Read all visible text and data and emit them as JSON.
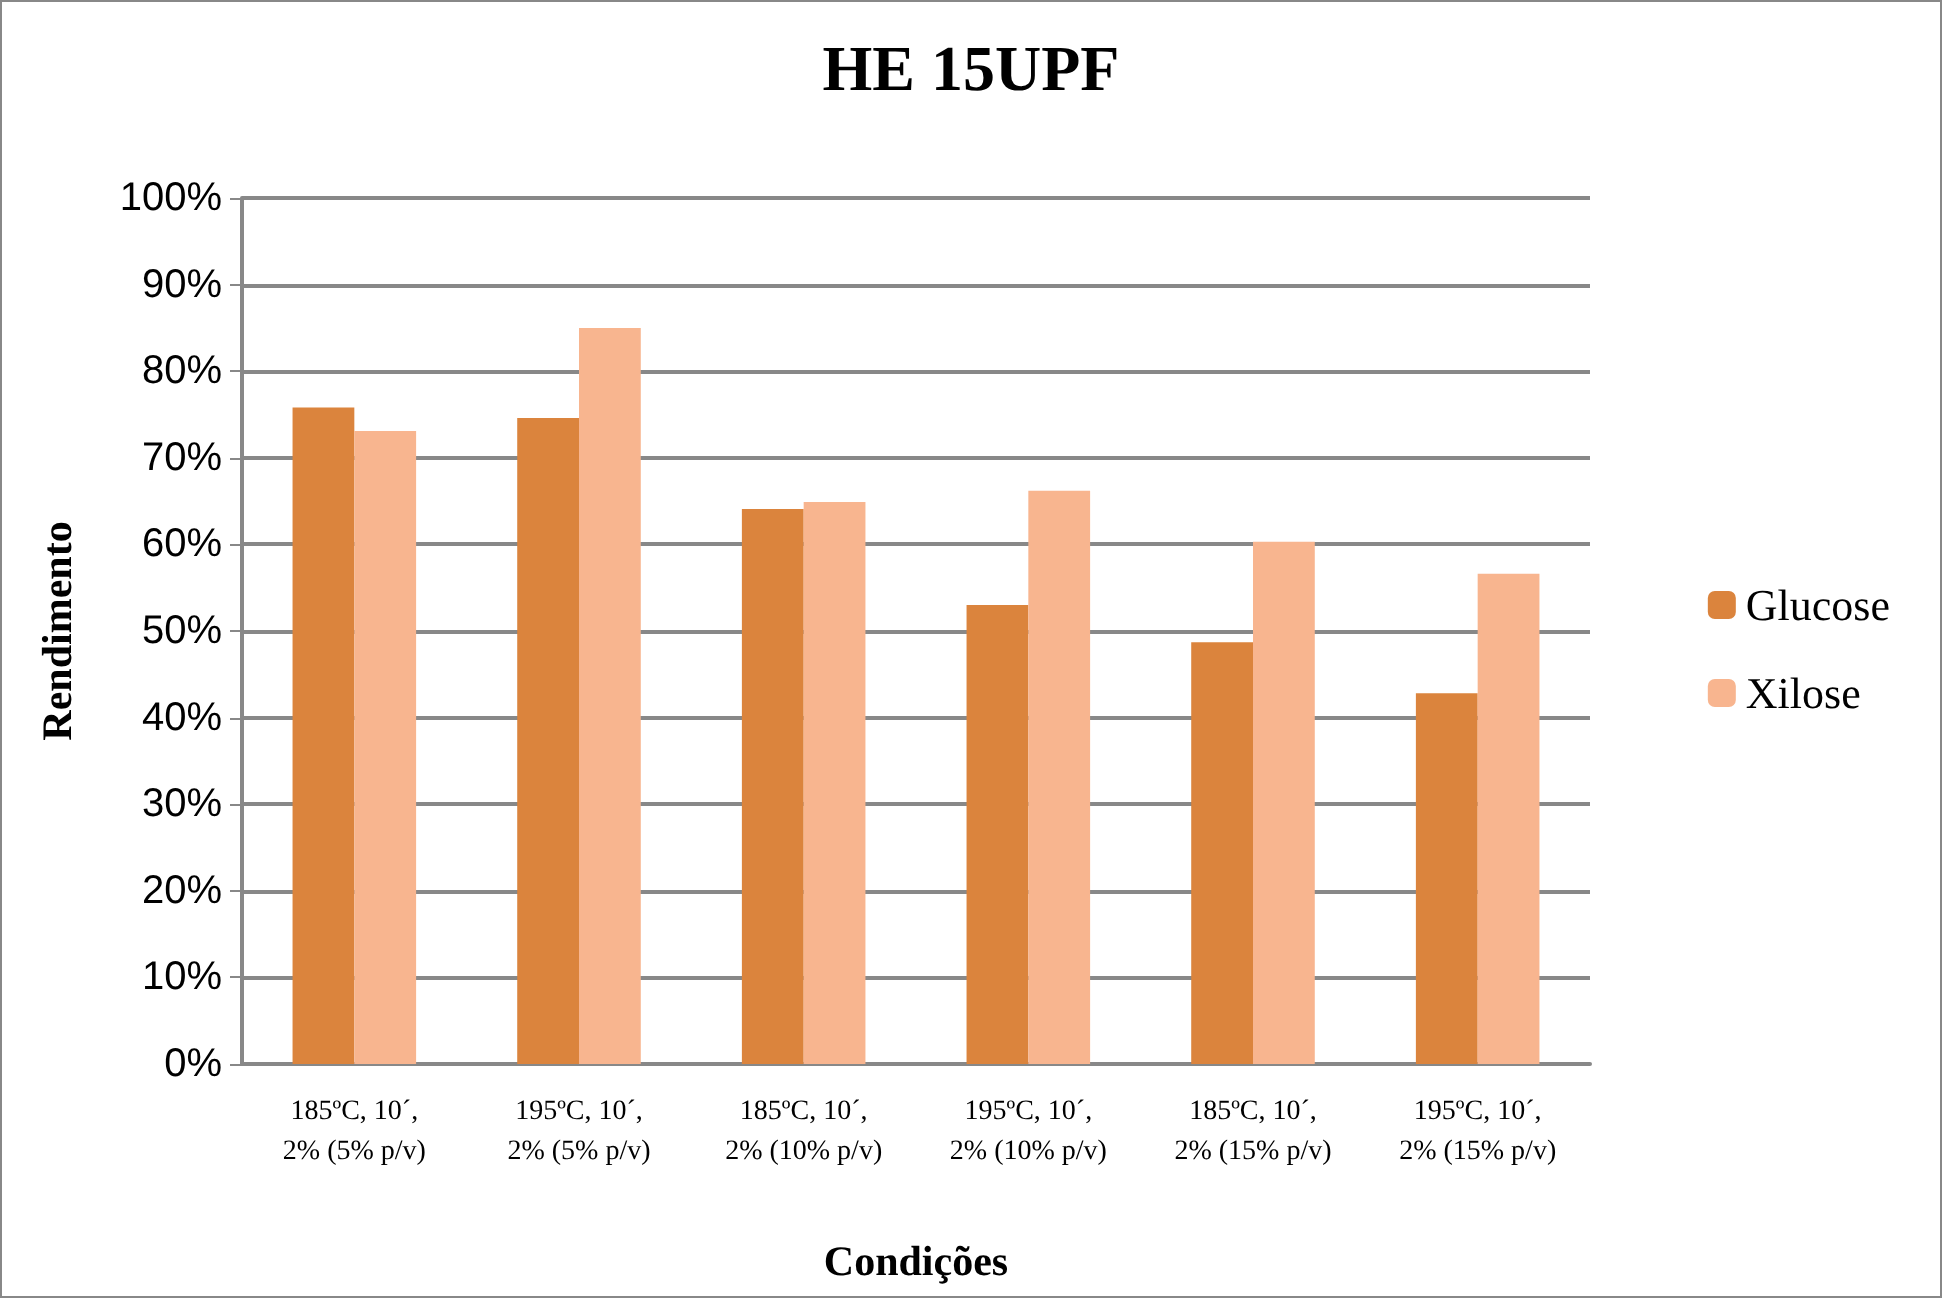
{
  "chart_data": {
    "type": "bar",
    "title": "HE 15UPF",
    "xlabel": "Condições",
    "ylabel": "Rendimento",
    "categories": [
      "185ºC, 10´,\n2% (5% p/v)",
      "195ºC, 10´,\n2% (5% p/v)",
      "185ºC, 10´,\n2% (10% p/v)",
      "195ºC, 10´,\n2% (10% p/v)",
      "185ºC, 10´,\n2% (15% p/v)",
      "195ºC, 10´,\n2% (15% p/v)"
    ],
    "series": [
      {
        "name": "Glucose",
        "color": "#db843d",
        "values": [
          0.758,
          0.746,
          0.641,
          0.53,
          0.487,
          0.428
        ]
      },
      {
        "name": "Xilose",
        "color": "#f8b58f",
        "values": [
          0.731,
          0.85,
          0.649,
          0.662,
          0.603,
          0.566
        ]
      }
    ],
    "ylim": [
      0,
      1
    ],
    "yticks": [
      {
        "value": 0,
        "label": "0%"
      },
      {
        "value": 0.1,
        "label": "10%"
      },
      {
        "value": 0.2,
        "label": "20%"
      },
      {
        "value": 0.3,
        "label": "30%"
      },
      {
        "value": 0.4,
        "label": "40%"
      },
      {
        "value": 0.5,
        "label": "50%"
      },
      {
        "value": 0.6,
        "label": "60%"
      },
      {
        "value": 0.7,
        "label": "70%"
      },
      {
        "value": 0.8,
        "label": "80%"
      },
      {
        "value": 0.9,
        "label": "90%"
      },
      {
        "value": 1,
        "label": "100%"
      }
    ],
    "grid": "y",
    "legend": "right"
  }
}
